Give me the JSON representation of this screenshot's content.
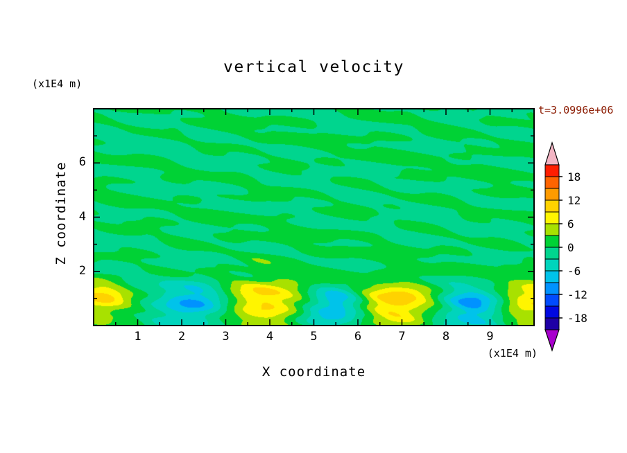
{
  "chart_data": {
    "type": "heatmap",
    "title": "vertical velocity",
    "time_label": "t=3.0996e+06",
    "time_label_color": "#8b1a00",
    "text_color": "#000000",
    "xlabel": "X coordinate",
    "ylabel": "Z coordinate",
    "x_unit_label": "(x1E4 m)",
    "y_unit_label": "(x1E4 m)",
    "xlim": [
      0,
      10
    ],
    "zlim": [
      0,
      8
    ],
    "x_major_ticks": [
      1,
      2,
      3,
      4,
      5,
      6,
      7,
      8,
      9
    ],
    "x_minor_ticks": [
      0.5,
      1.5,
      2.5,
      3.5,
      4.5,
      5.5,
      6.5,
      7.5,
      8.5,
      9.5
    ],
    "y_major_ticks": [
      2,
      4,
      6
    ],
    "y_minor_ticks": [
      1,
      3,
      5,
      7
    ],
    "contour_interval": 3,
    "value_range": [
      -21,
      21
    ],
    "colorbar": {
      "position": "right",
      "band_colors_top_to_bottom": [
        "#ff1e00",
        "#ff6400",
        "#ff9b00",
        "#ffd200",
        "#fff500",
        "#a8e100",
        "#00d235",
        "#00d58e",
        "#00d4bc",
        "#00c3ea",
        "#0092ff",
        "#004bff",
        "#0008e1",
        "#1e00a5"
      ],
      "over_arrow_color": "#f3b5c4",
      "under_arrow_color": "#a800cd",
      "tick_labels": [
        {
          "value": 18,
          "label": "18"
        },
        {
          "value": 12,
          "label": "12"
        },
        {
          "value": 6,
          "label": "6"
        },
        {
          "value": 0,
          "label": "0"
        },
        {
          "value": -6,
          "label": "-6"
        },
        {
          "value": -12,
          "label": "-12"
        },
        {
          "value": -18,
          "label": "-18"
        }
      ]
    },
    "field": {
      "description": "Vertical velocity cross-section: interior is near zero (alternating green / spring-green bands within +-3), with alternating positive (yellow, ~+9 to +12) and negative (blue, ~-9 to -12) convective cells along the bottom boundary near z~0.7-1.0 at x~0.2, 2.25, 3.9, 5.45, 6.85, 8.6, 9.95.",
      "interior_bias": -0.25,
      "interior_clamp": 2.9,
      "features": [
        {
          "x": 0.15,
          "z": 1.0,
          "sx": 0.5,
          "sz": 0.5,
          "amp": 9.0
        },
        {
          "x": 2.25,
          "z": 0.75,
          "sx": 0.55,
          "sz": 0.5,
          "amp": -10.2
        },
        {
          "x": 3.9,
          "z": 0.9,
          "sx": 0.72,
          "sz": 0.6,
          "amp": 10.5
        },
        {
          "x": 5.45,
          "z": 0.7,
          "sx": 0.5,
          "sz": 0.45,
          "amp": -10.0
        },
        {
          "x": 6.85,
          "z": 0.8,
          "sx": 0.6,
          "sz": 0.55,
          "amp": 11.5
        },
        {
          "x": 8.6,
          "z": 0.7,
          "sx": 0.52,
          "sz": 0.5,
          "amp": -10.4
        },
        {
          "x": 9.95,
          "z": 0.9,
          "sx": 0.55,
          "sz": 0.5,
          "amp": 9.5
        }
      ],
      "streaks": [
        {
          "a": 1.1,
          "kx": 1.9,
          "kz": 5.1,
          "p": 0.7
        },
        {
          "a": 0.85,
          "kx": 1.05,
          "kz": -7.3,
          "p": 1.9
        },
        {
          "a": 0.6,
          "kx": 2.7,
          "kz": 9.7,
          "p": 4.2
        },
        {
          "a": 0.5,
          "kx": 4.3,
          "kz": 3.1,
          "p": 2.4
        },
        {
          "a": 0.45,
          "kx": 0.55,
          "kz": 1.4,
          "p": 1.0
        },
        {
          "a": 0.4,
          "kx": 6.1,
          "kz": 12.5,
          "p": 5.5
        }
      ]
    }
  }
}
